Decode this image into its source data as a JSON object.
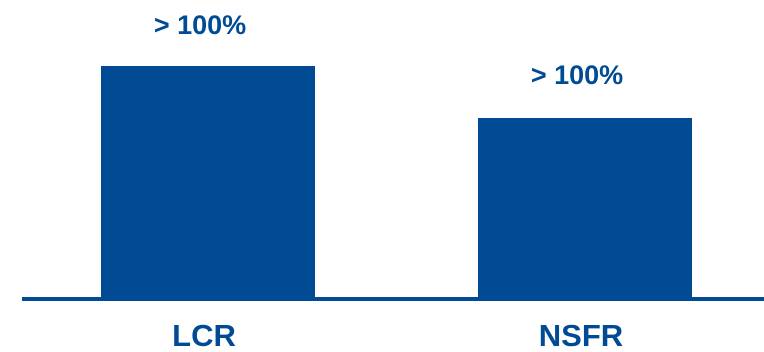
{
  "colors": {
    "bar": "#004B93",
    "label": "#004B93",
    "axis": "#004B93"
  },
  "chart_data": {
    "type": "bar",
    "categories": [
      "LCR",
      "NSFR"
    ],
    "data_labels": [
      "> 100%",
      "> 100%"
    ],
    "grid": false,
    "legend": "none"
  }
}
